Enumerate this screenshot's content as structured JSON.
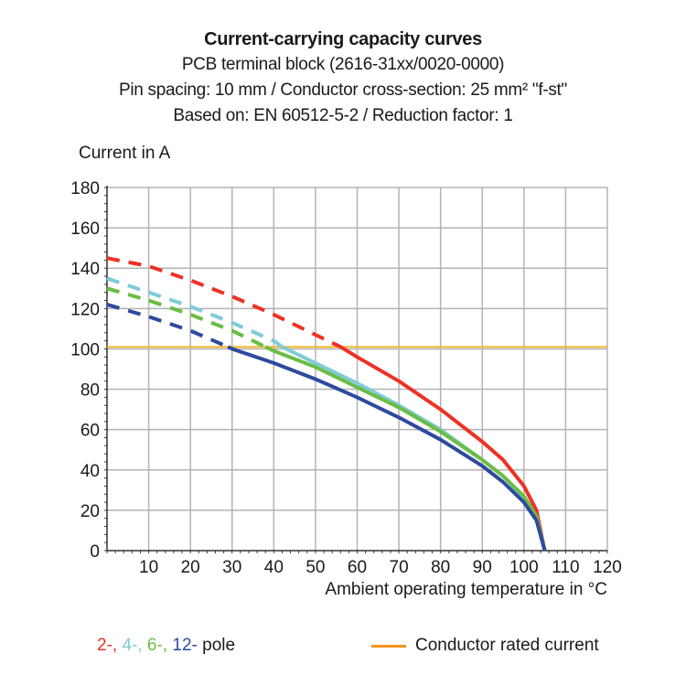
{
  "header": {
    "title": "Current-carrying capacity curves",
    "line2": "PCB terminal block (2616-31xx/0020-0000)",
    "line3": "Pin spacing: 10 mm / Conductor cross-section: 25 mm² \"f-st\"",
    "line4": "Based on: EN 60512-5-2 / Reduction factor: 1"
  },
  "legend": {
    "poles": [
      {
        "label": "2-,",
        "color": "#ee3124"
      },
      {
        "label": " 4-,",
        "color": "#7fcbd8"
      },
      {
        "label": " 6-,",
        "color": "#6bbd45"
      },
      {
        "label": " 12-",
        "color": "#2e4a9e"
      }
    ],
    "poles_suffix": " pole",
    "rated_label": "Conductor rated current",
    "rated_color": "#f7931e"
  },
  "chart_data": {
    "type": "line",
    "title": "Current-carrying capacity curves",
    "xlabel": "Ambient operating temperature in °C",
    "ylabel": "Current in A",
    "xlim": [
      0,
      120
    ],
    "ylim": [
      0,
      180
    ],
    "xticks": [
      10,
      20,
      30,
      40,
      50,
      60,
      70,
      80,
      90,
      100,
      110,
      120
    ],
    "yticks": [
      0,
      20,
      40,
      60,
      80,
      100,
      120,
      140,
      160,
      180
    ],
    "grid": true,
    "legend_position": "bottom",
    "rated_current": 101,
    "series": [
      {
        "name": "2-pole",
        "color": "#ee3124",
        "dashed_until": 56,
        "x": [
          0,
          10,
          20,
          30,
          40,
          50,
          56,
          60,
          70,
          80,
          90,
          95,
          100,
          103,
          105
        ],
        "y": [
          145,
          141,
          134,
          126,
          117,
          107,
          101,
          96,
          84,
          70,
          54,
          45,
          32,
          20,
          0
        ]
      },
      {
        "name": "4-pole",
        "color": "#7fcbd8",
        "dashed_until": 42,
        "x": [
          0,
          10,
          20,
          30,
          40,
          42,
          50,
          60,
          70,
          80,
          90,
          95,
          100,
          103,
          105
        ],
        "y": [
          135,
          128,
          121,
          113,
          104,
          101,
          93,
          83,
          72,
          60,
          45,
          37,
          26,
          17,
          0
        ]
      },
      {
        "name": "6-pole",
        "color": "#6bbd45",
        "dashed_until": 38,
        "x": [
          0,
          10,
          20,
          30,
          38,
          40,
          50,
          60,
          70,
          80,
          90,
          95,
          100,
          103,
          105
        ],
        "y": [
          130,
          124,
          117,
          109,
          101,
          99,
          91,
          81,
          71,
          59,
          45,
          37,
          27,
          17,
          0
        ]
      },
      {
        "name": "12-pole",
        "color": "#2e4a9e",
        "dashed_until": 29,
        "x": [
          0,
          10,
          20,
          29,
          30,
          40,
          50,
          60,
          70,
          80,
          90,
          95,
          100,
          103,
          105
        ],
        "y": [
          122,
          116,
          109,
          101,
          100,
          93,
          85,
          76,
          66,
          55,
          42,
          34,
          24,
          15,
          0
        ]
      }
    ]
  }
}
